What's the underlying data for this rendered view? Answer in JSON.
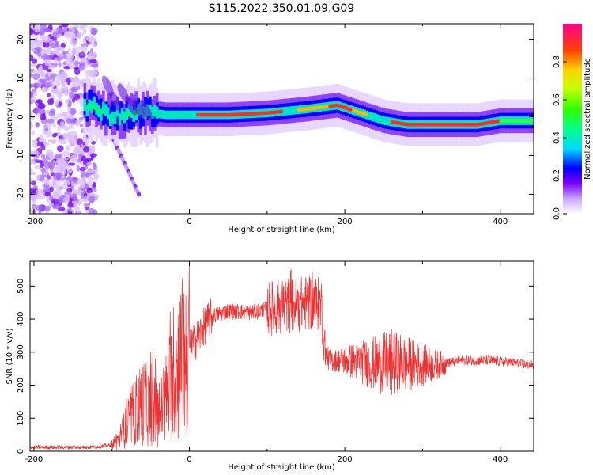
{
  "figure_title": "S115.2022.350.01.09.G09",
  "chart_data": [
    {
      "type": "heatmap",
      "xlabel": "Height of straight line (km)",
      "ylabel": "Frequency (Hz)",
      "xlim": [
        -205,
        443
      ],
      "ylim": [
        -25,
        24
      ],
      "xticks": [
        "-200",
        "0",
        "200",
        "400"
      ],
      "yticks": [
        "-20",
        "-10",
        "0",
        "10",
        "20"
      ],
      "colorbar": {
        "label": "Normalized spectral amplitude",
        "range": [
          0,
          1
        ],
        "ticks": [
          "0.0",
          "0.2",
          "0.4",
          "0.6",
          "0.8"
        ]
      },
      "dominant_frequency_ridge": {
        "x": [
          -130,
          -110,
          -90,
          -70,
          -50,
          -30,
          0,
          50,
          100,
          150,
          190,
          220,
          250,
          280,
          320,
          370,
          400,
          443
        ],
        "y": [
          3,
          1,
          0,
          1,
          1,
          0.5,
          0.5,
          0.5,
          1,
          2,
          3,
          1,
          -1,
          -2,
          -2,
          -2,
          -1,
          -1
        ]
      },
      "noise_region_x": [
        -205,
        -120
      ]
    },
    {
      "type": "line",
      "xlabel": "Height of straight line (km)",
      "ylabel": "SNR (10 * v/v)",
      "xlim": [
        -205,
        443
      ],
      "ylim": [
        0,
        575
      ],
      "xticks": [
        "-200",
        "0",
        "200",
        "400"
      ],
      "yticks": [
        "0",
        "100",
        "200",
        "300",
        "400",
        "500"
      ],
      "color": "#f03030",
      "series": [
        {
          "x": [
            -205,
            -150,
            -120,
            -100,
            -90,
            -80,
            -70,
            -60,
            -50,
            -40,
            -30,
            -20,
            -10,
            0,
            10,
            20,
            30,
            50,
            80,
            100,
            120,
            140,
            160,
            170,
            175,
            180,
            200,
            220,
            240,
            260,
            280,
            300,
            320,
            350,
            380,
            410,
            443
          ],
          "y": [
            12,
            12,
            13,
            20,
            40,
            80,
            120,
            150,
            130,
            110,
            160,
            230,
            280,
            310,
            340,
            380,
            410,
            425,
            420,
            430,
            440,
            445,
            450,
            440,
            295,
            275,
            275,
            270,
            265,
            265,
            265,
            262,
            262,
            275,
            275,
            270,
            260
          ]
        }
      ]
    }
  ]
}
